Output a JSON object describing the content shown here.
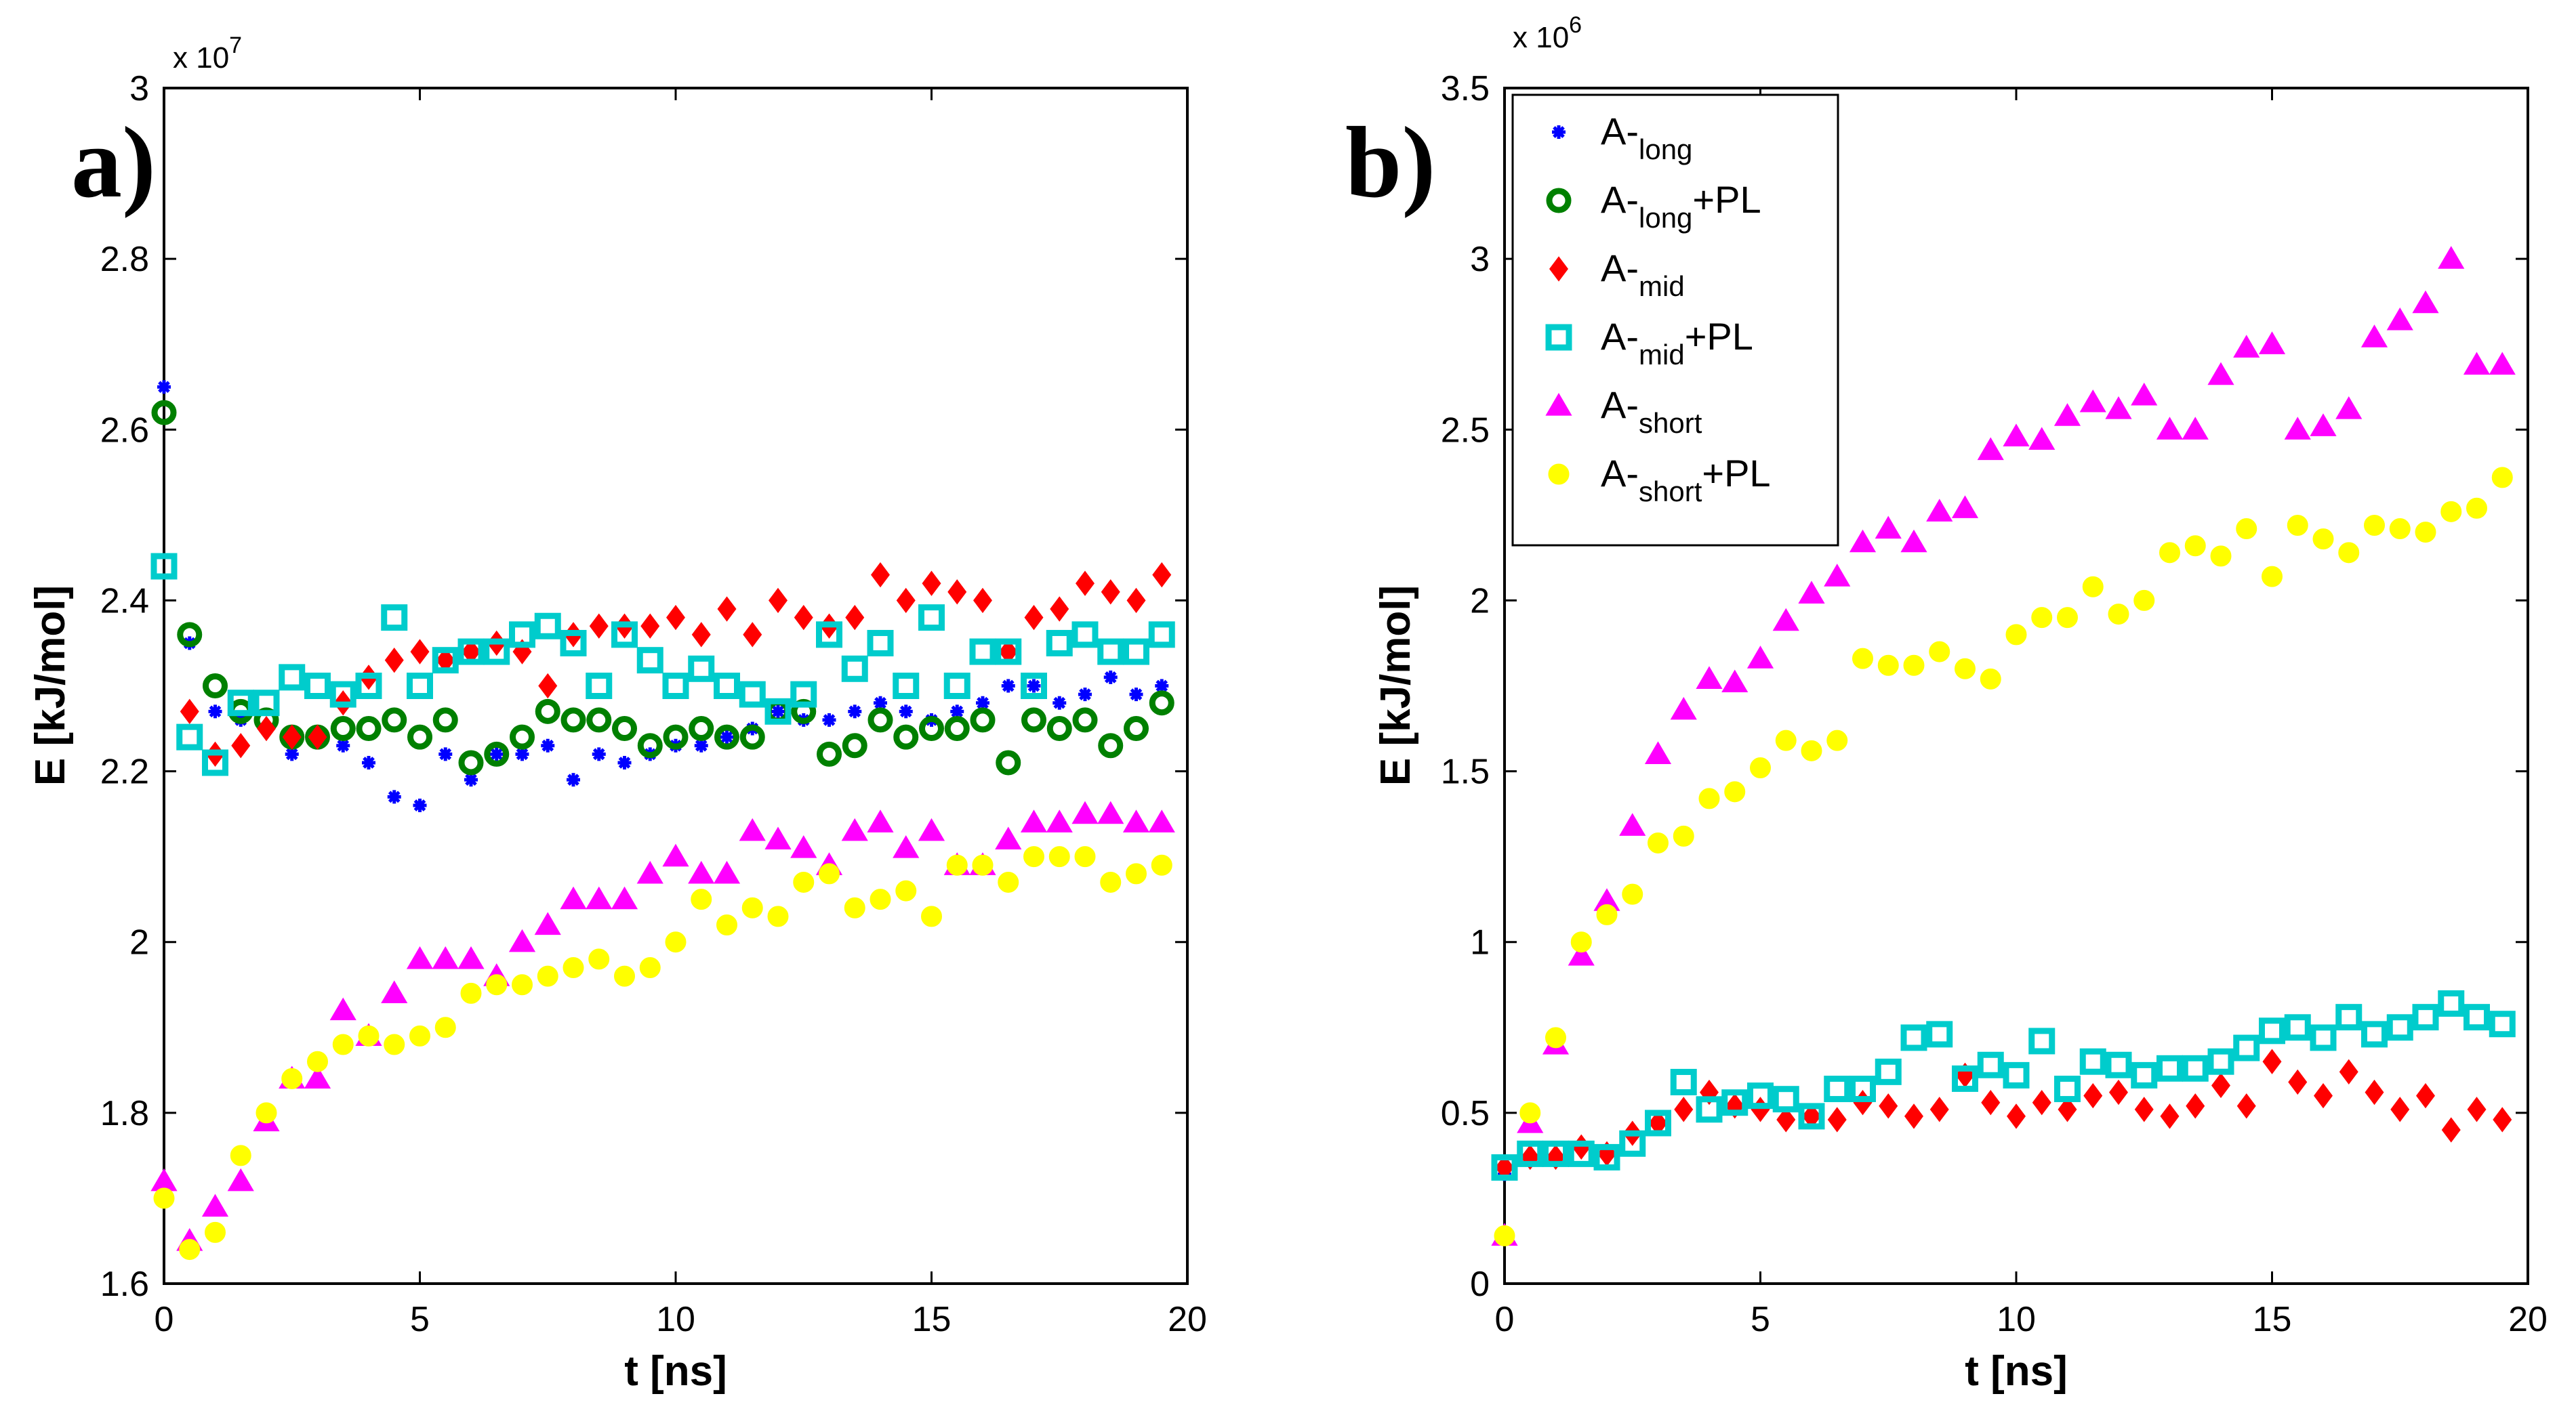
{
  "chart_data": [
    {
      "type": "scatter",
      "panel": "a)",
      "xlabel": "t [ns]",
      "ylabel": "E [kJ/mol]",
      "y_multiplier": "x 10",
      "y_exponent": "7",
      "xlim": [
        0,
        20
      ],
      "ylim": [
        1.6,
        3.0
      ],
      "xticks": [
        0,
        5,
        10,
        15,
        20
      ],
      "xtick_labels": [
        "0",
        "5",
        "10",
        "15",
        "20"
      ],
      "yticks": [
        1.6,
        1.8,
        2.0,
        2.2,
        2.4,
        2.6,
        2.8,
        3.0
      ],
      "ytick_labels": [
        "1.6",
        "1.8",
        "2",
        "2.2",
        "2.4",
        "2.6",
        "2.8",
        "3"
      ],
      "x": [
        0,
        0.5,
        1,
        1.5,
        2,
        2.5,
        3,
        3.5,
        4,
        4.5,
        5,
        5.5,
        6,
        6.5,
        7,
        7.5,
        8,
        8.5,
        9,
        9.5,
        10,
        10.5,
        11,
        11.5,
        12,
        12.5,
        13,
        13.5,
        14,
        14.5,
        15,
        15.5,
        16,
        16.5,
        17,
        17.5,
        18,
        18.5,
        19,
        19.5
      ],
      "series": [
        {
          "name": "A-long",
          "values": [
            2.65,
            2.35,
            2.27,
            2.26,
            2.25,
            2.22,
            2.24,
            2.23,
            2.21,
            2.17,
            2.16,
            2.22,
            2.19,
            2.22,
            2.22,
            2.23,
            2.19,
            2.22,
            2.21,
            2.22,
            2.23,
            2.23,
            2.24,
            2.25,
            2.27,
            2.26,
            2.26,
            2.27,
            2.28,
            2.27,
            2.26,
            2.27,
            2.28,
            2.3,
            2.3,
            2.28,
            2.29,
            2.31,
            2.29,
            2.3
          ]
        },
        {
          "name": "A-long+PL",
          "values": [
            2.62,
            2.36,
            2.3,
            2.27,
            2.26,
            2.24,
            2.24,
            2.25,
            2.25,
            2.26,
            2.24,
            2.26,
            2.21,
            2.22,
            2.24,
            2.27,
            2.26,
            2.26,
            2.25,
            2.23,
            2.24,
            2.25,
            2.24,
            2.24,
            2.27,
            2.27,
            2.22,
            2.23,
            2.26,
            2.24,
            2.25,
            2.25,
            2.26,
            2.21,
            2.26,
            2.25,
            2.26,
            2.23,
            2.25,
            2.28
          ]
        },
        {
          "name": "A-mid",
          "values": [
            null,
            2.27,
            2.22,
            2.23,
            2.25,
            2.24,
            2.24,
            2.28,
            2.31,
            2.33,
            2.34,
            2.33,
            2.34,
            2.35,
            2.34,
            2.3,
            2.36,
            2.37,
            2.37,
            2.37,
            2.38,
            2.36,
            2.39,
            2.36,
            2.4,
            2.38,
            2.37,
            2.38,
            2.43,
            2.4,
            2.42,
            2.41,
            2.4,
            2.34,
            2.38,
            2.39,
            2.42,
            2.41,
            2.4,
            2.43
          ]
        },
        {
          "name": "A-mid+PL",
          "values": [
            2.44,
            2.24,
            2.21,
            2.28,
            2.28,
            2.31,
            2.3,
            2.29,
            2.3,
            2.38,
            2.3,
            2.33,
            2.34,
            2.34,
            2.36,
            2.37,
            2.35,
            2.3,
            2.36,
            2.33,
            2.3,
            2.32,
            2.3,
            2.29,
            2.27,
            2.29,
            2.36,
            2.32,
            2.35,
            2.3,
            2.38,
            2.3,
            2.34,
            2.34,
            2.3,
            2.35,
            2.36,
            2.34,
            2.34,
            2.36
          ]
        },
        {
          "name": "A-short",
          "values": [
            1.72,
            1.65,
            1.69,
            1.72,
            1.79,
            1.84,
            1.84,
            1.92,
            1.89,
            1.94,
            1.98,
            1.98,
            1.98,
            1.96,
            2.0,
            2.02,
            2.05,
            2.05,
            2.05,
            2.08,
            2.1,
            2.08,
            2.08,
            2.13,
            2.12,
            2.11,
            2.09,
            2.13,
            2.14,
            2.11,
            2.13,
            2.09,
            2.09,
            2.12,
            2.14,
            2.14,
            2.15,
            2.15,
            2.14,
            2.14
          ]
        },
        {
          "name": "A-short+PL",
          "values": [
            1.7,
            1.64,
            1.66,
            1.75,
            1.8,
            1.84,
            1.86,
            1.88,
            1.89,
            1.88,
            1.89,
            1.9,
            1.94,
            1.95,
            1.95,
            1.96,
            1.97,
            1.98,
            1.96,
            1.97,
            2.0,
            2.05,
            2.02,
            2.04,
            2.03,
            2.07,
            2.08,
            2.04,
            2.05,
            2.06,
            2.03,
            2.09,
            2.09,
            2.07,
            2.1,
            2.1,
            2.1,
            2.07,
            2.08,
            2.09
          ]
        }
      ]
    },
    {
      "type": "scatter",
      "panel": "b)",
      "xlabel": "t [ns]",
      "ylabel": "E [kJ/mol]",
      "y_multiplier": "x 10",
      "y_exponent": "6",
      "xlim": [
        0,
        20
      ],
      "ylim": [
        0,
        3.5
      ],
      "xticks": [
        0,
        5,
        10,
        15,
        20
      ],
      "xtick_labels": [
        "0",
        "5",
        "10",
        "15",
        "20"
      ],
      "yticks": [
        0,
        0.5,
        1.0,
        1.5,
        2.0,
        2.5,
        3.0,
        3.5
      ],
      "ytick_labels": [
        "0",
        "0.5",
        "1",
        "1.5",
        "2",
        "2.5",
        "3",
        "3.5"
      ],
      "legend_position": "top-left",
      "x": [
        0,
        0.5,
        1,
        1.5,
        2,
        2.5,
        3,
        3.5,
        4,
        4.5,
        5,
        5.5,
        6,
        6.5,
        7,
        7.5,
        8,
        8.5,
        9,
        9.5,
        10,
        10.5,
        11,
        11.5,
        12,
        12.5,
        13,
        13.5,
        14,
        14.5,
        15,
        15.5,
        16,
        16.5,
        17,
        17.5,
        18,
        18.5,
        19,
        19.5
      ],
      "series": [
        {
          "name": "A-long",
          "values": [
            0.32,
            null,
            null,
            null,
            null,
            null,
            null,
            null,
            null,
            null,
            null,
            null,
            null,
            null,
            null,
            null,
            null,
            null,
            null,
            null,
            null,
            null,
            null,
            null,
            null,
            null,
            null,
            null,
            null,
            null,
            null,
            null,
            null,
            null,
            null,
            null,
            null,
            null,
            null,
            null
          ]
        },
        {
          "name": "A-long+PL",
          "values": [
            null,
            null,
            null,
            null,
            null,
            null,
            null,
            null,
            null,
            null,
            null,
            null,
            null,
            null,
            null,
            null,
            null,
            null,
            null,
            null,
            null,
            null,
            null,
            null,
            null,
            null,
            null,
            null,
            null,
            null,
            null,
            null,
            null,
            null,
            null,
            null,
            null,
            null,
            null,
            null
          ]
        },
        {
          "name": "A-mid",
          "values": [
            0.34,
            0.37,
            0.37,
            0.4,
            0.38,
            0.44,
            0.47,
            0.51,
            0.56,
            0.52,
            0.51,
            0.48,
            0.49,
            0.48,
            0.53,
            0.52,
            0.49,
            0.51,
            0.61,
            0.53,
            0.49,
            0.53,
            0.51,
            0.55,
            0.56,
            0.51,
            0.49,
            0.52,
            0.58,
            0.52,
            0.65,
            0.59,
            0.55,
            0.62,
            0.56,
            0.51,
            0.55,
            0.45,
            0.51,
            0.48
          ]
        },
        {
          "name": "A-mid+PL",
          "values": [
            0.34,
            0.38,
            0.38,
            0.38,
            0.37,
            0.41,
            0.47,
            0.59,
            0.51,
            0.53,
            0.55,
            0.54,
            0.49,
            0.57,
            0.57,
            0.62,
            0.72,
            0.73,
            0.6,
            0.64,
            0.61,
            0.71,
            0.57,
            0.65,
            0.64,
            0.61,
            0.63,
            0.63,
            0.65,
            0.69,
            0.74,
            0.75,
            0.72,
            0.78,
            0.73,
            0.75,
            0.78,
            0.82,
            0.78,
            0.76
          ]
        },
        {
          "name": "A-short",
          "values": [
            0.14,
            0.47,
            0.7,
            0.96,
            1.12,
            1.34,
            1.55,
            1.68,
            1.77,
            1.76,
            1.83,
            1.94,
            2.02,
            2.07,
            2.17,
            2.21,
            2.17,
            2.26,
            2.27,
            2.44,
            2.48,
            2.47,
            2.54,
            2.58,
            2.56,
            2.6,
            2.5,
            2.5,
            2.66,
            2.74,
            2.75,
            2.5,
            2.51,
            2.56,
            2.77,
            2.82,
            2.87,
            3.0,
            2.69,
            2.69
          ]
        },
        {
          "name": "A-short+PL",
          "values": [
            0.14,
            0.5,
            0.72,
            1.0,
            1.08,
            1.14,
            1.29,
            1.31,
            1.42,
            1.44,
            1.51,
            1.59,
            1.56,
            1.59,
            1.83,
            1.81,
            1.81,
            1.85,
            1.8,
            1.77,
            1.9,
            1.95,
            1.95,
            2.04,
            1.96,
            2.0,
            2.14,
            2.16,
            2.13,
            2.21,
            2.07,
            2.22,
            2.18,
            2.14,
            2.22,
            2.21,
            2.2,
            2.26,
            2.27,
            2.36
          ]
        }
      ]
    }
  ],
  "legend": [
    {
      "base": "A-",
      "sub": "long",
      "suffix": ""
    },
    {
      "base": "A-",
      "sub": "long",
      "suffix": "+PL"
    },
    {
      "base": "A-",
      "sub": "mid",
      "suffix": ""
    },
    {
      "base": "A-",
      "sub": "mid",
      "suffix": "+PL"
    },
    {
      "base": "A-",
      "sub": "short",
      "suffix": ""
    },
    {
      "base": "A-",
      "sub": "short",
      "suffix": "+PL"
    }
  ],
  "colors": {
    "A-long": "#0000ff",
    "A-long+PL": "#008000",
    "A-mid": "#ff0000",
    "A-mid+PL": "#00cccc",
    "A-short": "#ff00ff",
    "A-short+PL": "#ffff00"
  },
  "markers": {
    "A-long": "star",
    "A-long+PL": "ring",
    "A-mid": "diamond",
    "A-mid+PL": "square",
    "A-short": "triangle",
    "A-short+PL": "dot"
  }
}
